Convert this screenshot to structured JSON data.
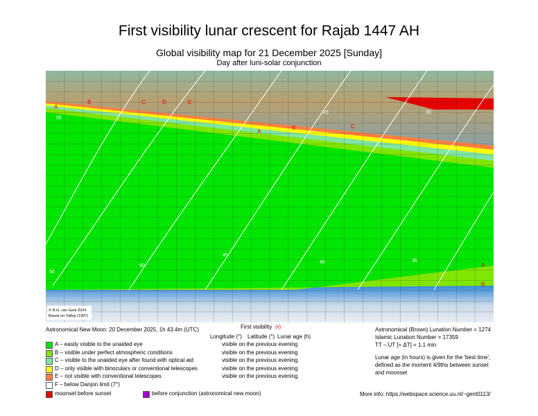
{
  "header": {
    "title": "First visibility lunar crescent for Rajab 1447 AH",
    "subtitle": "Global visibility map for 21 December 2025 [Sunday]",
    "note": "Day after luni-solar conjunction"
  },
  "map": {
    "credit": [
      "© R.H. van Gent 2024",
      "Based on Yallop (1997)"
    ],
    "zone_labels": [
      "A",
      "B",
      "C",
      "D",
      "E",
      "A",
      "B",
      "C",
      "A",
      "B"
    ],
    "contour_labels": [
      "50",
      "45",
      "40",
      "35",
      "30",
      "25",
      "50",
      "55"
    ]
  },
  "info_left": {
    "new_moon": "Astronomical New Moon: 20 December 2025, 1h 43.4m (UTC)",
    "first_visibility": "First visibility",
    "first_visibility_mark": "(•)",
    "columns": [
      "Longitude (°)",
      "Latitude (°)",
      "Lunar age (h)"
    ]
  },
  "legend": [
    {
      "text": "A – easily visible to the unaided eye",
      "status": "visible on the previous evening",
      "color": "#00e600"
    },
    {
      "text": "B – visible under perfect atmospheric conditions",
      "status": "visible on the previous evening",
      "color": "#80e600"
    },
    {
      "text": "C – visible to the unaided eye after found with optical aid",
      "status": "visible on the previous evening",
      "color": "#80e6a0"
    },
    {
      "text": "D – only visible with binoculars or conventional telescopes",
      "status": "visible on the previous evening",
      "color": "#ffff00"
    },
    {
      "text": "E – not visible with conventional telescopes",
      "status": "visible on the previous evening",
      "color": "#ff8040"
    },
    {
      "text": "F – below Danjon limit (7°)",
      "color": "#ffffff"
    }
  ],
  "extra_legend": [
    {
      "text": "moonset before sunset",
      "color": "#e60000"
    },
    {
      "text": "before conjunction (astronomical new moon)",
      "color": "#a000c0"
    }
  ],
  "info_right": {
    "lines": [
      "Astronomical (Brown) Lunation Number = 1274",
      "Islamic Lunation Number = 17359",
      "TT – UT [= ΔT] = 1.1 min"
    ],
    "note": [
      "Lunar age (in hours) is given for the 'best time',",
      "defined as the moment 4/9ths between sunset",
      "and moonset"
    ],
    "more_info": "More info: https://webspace.science.uu.nl/~gent0113/"
  }
}
